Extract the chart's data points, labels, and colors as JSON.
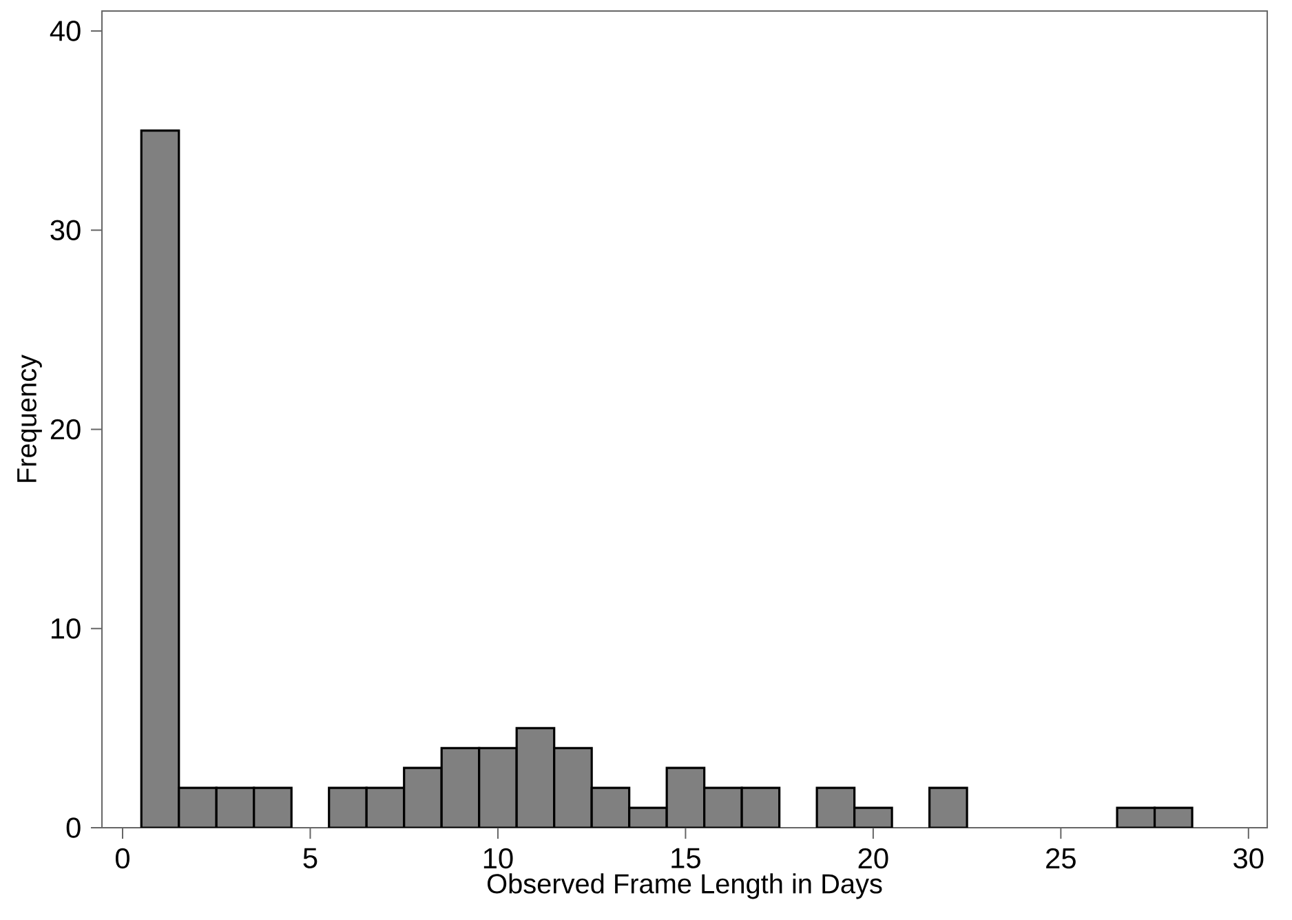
{
  "chart_data": {
    "type": "histogram",
    "xlabel": "Observed Frame Length in Days",
    "ylabel": "Frequency",
    "bins": [
      0.5,
      1.5,
      2.5,
      3.5,
      4.5,
      5.5,
      6.5,
      7.5,
      8.5,
      9.5,
      10.5,
      11.5,
      12.5,
      13.5,
      14.5,
      15.5,
      16.5,
      17.5,
      18.5,
      19.5,
      20.5,
      21.5,
      22.5,
      23.5,
      24.5,
      25.5,
      26.5,
      27.5,
      28.5
    ],
    "values": [
      35,
      2,
      2,
      2,
      0,
      2,
      2,
      3,
      4,
      4,
      5,
      4,
      2,
      1,
      3,
      2,
      2,
      0,
      2,
      1,
      0,
      2,
      0,
      0,
      0,
      0,
      1,
      1
    ],
    "color": "#808080",
    "xlim": [
      -0.55,
      30.5
    ],
    "ylim": [
      0,
      41
    ],
    "xticks": [
      0,
      5,
      10,
      15,
      20,
      25,
      30
    ],
    "yticks": [
      0,
      10,
      20,
      30,
      40
    ],
    "grid": false
  }
}
